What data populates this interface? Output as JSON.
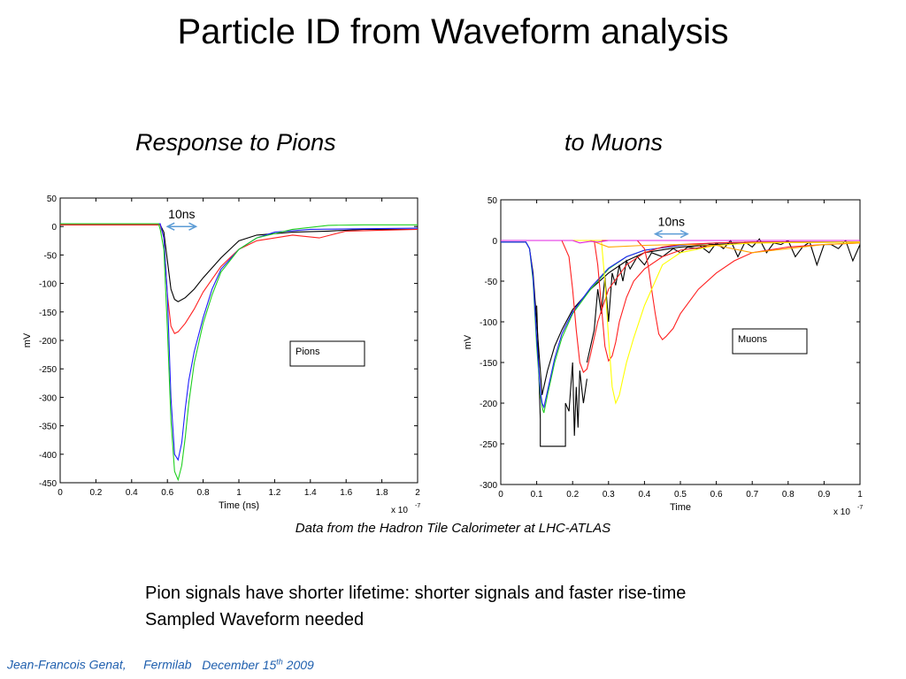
{
  "slide": {
    "title": "Particle ID from Waveform analysis",
    "subtitle_left": "Response to  Pions",
    "subtitle_right": "to  Muons",
    "caption": "Data from the  Hadron Tile Calorimeter  at  LHC-ATLAS",
    "bullets": [
      "Pion signals have shorter lifetime:  shorter signals and faster rise-time",
      "Sampled Waveform needed"
    ],
    "footer": {
      "author": "Jean-Francois Genat,",
      "lab": "Fermilab",
      "date_prefix": "December 15",
      "date_sup": "th",
      "date_year": " 2009"
    }
  },
  "colors": {
    "black": "#000000",
    "red": "#ff2020",
    "green": "#20d020",
    "blue": "#2020ff",
    "magenta": "#e020e0",
    "yellow": "#ffff00",
    "orange": "#ffa500",
    "arrow": "#5b9bd5",
    "footer": "#1f5fae"
  },
  "chart_data": [
    {
      "type": "line",
      "xlabel": "Time (ns)",
      "ylabel": "mV",
      "x_multiplier": "x 10",
      "x_multiplier_exp": "-7",
      "xlim": [
        0,
        2
      ],
      "ylim": [
        -450,
        50
      ],
      "xticks": [
        "0",
        "0.2",
        "0.4",
        "0.6",
        "0.8",
        "1",
        "1.2",
        "1.4",
        "1.6",
        "1.8",
        "2"
      ],
      "yticks": [
        "50",
        "0",
        "-50",
        "-100",
        "-150",
        "-200",
        "-250",
        "-300",
        "-350",
        "-400",
        "-450"
      ],
      "legend": "Pions",
      "annotation": "10ns",
      "annotation_span": [
        0.6,
        0.76
      ],
      "annotation_y": 0,
      "series": [
        {
          "color": "#000000",
          "x": [
            0,
            0.56,
            0.58,
            0.6,
            0.62,
            0.64,
            0.66,
            0.7,
            0.75,
            0.8,
            0.9,
            1.0,
            1.1,
            1.3,
            1.5,
            1.7,
            2.0
          ],
          "y": [
            3,
            3,
            -10,
            -60,
            -110,
            -128,
            -132,
            -125,
            -110,
            -90,
            -55,
            -25,
            -15,
            -10,
            -8,
            -5,
            -5
          ]
        },
        {
          "color": "#ff2020",
          "x": [
            0,
            0.56,
            0.58,
            0.6,
            0.62,
            0.64,
            0.66,
            0.7,
            0.75,
            0.8,
            0.9,
            1.0,
            1.1,
            1.3,
            1.45,
            1.6,
            2.0
          ],
          "y": [
            3,
            3,
            -20,
            -120,
            -175,
            -188,
            -185,
            -170,
            -145,
            -115,
            -70,
            -40,
            -25,
            -15,
            -20,
            -8,
            -5
          ]
        },
        {
          "color": "#2020ff",
          "x": [
            0,
            0.56,
            0.58,
            0.6,
            0.62,
            0.64,
            0.66,
            0.68,
            0.7,
            0.72,
            0.75,
            0.8,
            0.85,
            0.9,
            1.0,
            1.1,
            1.2,
            1.4,
            2.0
          ],
          "y": [
            5,
            5,
            -20,
            -120,
            -300,
            -400,
            -410,
            -380,
            -320,
            -270,
            -220,
            -160,
            -110,
            -75,
            -40,
            -20,
            -10,
            -5,
            -3
          ]
        },
        {
          "color": "#20d020",
          "x": [
            0,
            0.55,
            0.56,
            0.58,
            0.6,
            0.62,
            0.64,
            0.66,
            0.68,
            0.7,
            0.72,
            0.75,
            0.8,
            0.85,
            0.9,
            1.0,
            1.1,
            1.3,
            1.5,
            1.7,
            2.0
          ],
          "y": [
            5,
            5,
            -5,
            -40,
            -180,
            -340,
            -430,
            -445,
            -420,
            -370,
            -310,
            -240,
            -170,
            -120,
            -80,
            -40,
            -20,
            -5,
            2,
            3,
            3
          ]
        }
      ]
    },
    {
      "type": "line",
      "xlabel": "Time",
      "ylabel": "mV",
      "x_multiplier": "x 10",
      "x_multiplier_exp": "-7",
      "xlim": [
        0,
        1
      ],
      "ylim": [
        -300,
        50
      ],
      "xticks": [
        "0",
        "0.1",
        "0.2",
        "0.3",
        "0.4",
        "0.5",
        "0.6",
        "0.7",
        "0.8",
        "0.9",
        "1"
      ],
      "yticks": [
        "50",
        "0",
        "-50",
        "-100",
        "-150",
        "-200",
        "-250",
        "-300"
      ],
      "legend": "Muons",
      "annotation": "10ns",
      "annotation_span": [
        0.43,
        0.52
      ],
      "annotation_y": 8,
      "series": [
        {
          "color": "#000000",
          "x": [
            0,
            0.07,
            0.08,
            0.09,
            0.1,
            0.11,
            0.115,
            0.12,
            0.13,
            0.15,
            0.17,
            0.2,
            0.25,
            0.3,
            0.35,
            0.4,
            0.5,
            0.6,
            0.7,
            0.8,
            0.9,
            1.0
          ],
          "y": [
            -2,
            -2,
            -10,
            -40,
            -100,
            -160,
            -190,
            -180,
            -160,
            -130,
            -110,
            -85,
            -60,
            -40,
            -25,
            -15,
            -8,
            -5,
            -3,
            -2,
            -2,
            -2
          ]
        },
        {
          "color": "#000000",
          "x": [
            0.1,
            0.11,
            0.11,
            0.18,
            0.18,
            0.19,
            0.2,
            0.205,
            0.21,
            0.215,
            0.22,
            0.23,
            0.24
          ],
          "y": [
            -80,
            -220,
            -253,
            -253,
            -200,
            -210,
            -150,
            -240,
            -180,
            -230,
            -160,
            -200,
            -170
          ]
        },
        {
          "color": "#000000",
          "x": [
            0.24,
            0.26,
            0.27,
            0.28,
            0.29,
            0.3,
            0.31,
            0.32,
            0.33,
            0.34,
            0.35,
            0.36,
            0.38,
            0.4,
            0.42,
            0.45,
            0.48,
            0.5,
            0.52,
            0.55,
            0.58,
            0.6
          ],
          "y": [
            -150,
            -110,
            -60,
            -90,
            -45,
            -100,
            -40,
            -55,
            -30,
            -50,
            -25,
            -35,
            -20,
            -30,
            -15,
            -20,
            -10,
            -15,
            -8,
            -10,
            -5,
            -5
          ]
        },
        {
          "color": "#000000",
          "x": [
            0.55,
            0.58,
            0.6,
            0.62,
            0.64,
            0.66,
            0.68,
            0.7,
            0.72,
            0.74,
            0.76,
            0.78,
            0.8,
            0.82,
            0.84,
            0.86,
            0.88,
            0.9,
            0.92,
            0.94,
            0.96,
            0.98,
            1.0
          ],
          "y": [
            -5,
            -15,
            -3,
            -10,
            0,
            -20,
            -2,
            -8,
            2,
            -15,
            -3,
            -5,
            0,
            -20,
            -8,
            -2,
            -30,
            -5,
            -5,
            -10,
            0,
            -25,
            -5
          ]
        },
        {
          "color": "#20d020",
          "x": [
            0,
            0.07,
            0.08,
            0.09,
            0.1,
            0.11,
            0.115,
            0.12,
            0.13,
            0.15,
            0.17,
            0.2,
            0.25,
            0.3,
            0.35,
            0.4,
            0.5,
            0.6,
            0.7,
            1.0
          ],
          "y": [
            -2,
            -2,
            -10,
            -50,
            -130,
            -190,
            -205,
            -212,
            -190,
            -150,
            -120,
            -90,
            -60,
            -35,
            -20,
            -12,
            -6,
            -3,
            -2,
            -2
          ]
        },
        {
          "color": "#2020ff",
          "x": [
            0,
            0.07,
            0.08,
            0.09,
            0.1,
            0.11,
            0.115,
            0.12,
            0.13,
            0.15,
            0.17,
            0.2,
            0.25,
            0.3,
            0.35,
            0.4,
            0.5,
            0.6,
            0.7,
            1.0
          ],
          "y": [
            -2,
            -2,
            -10,
            -45,
            -120,
            -185,
            -200,
            -205,
            -185,
            -145,
            -115,
            -88,
            -58,
            -34,
            -20,
            -12,
            -6,
            -3,
            -2,
            -2
          ]
        },
        {
          "color": "#ff2020",
          "x": [
            0,
            0.17,
            0.19,
            0.2,
            0.21,
            0.22,
            0.23,
            0.24,
            0.25,
            0.27,
            0.3,
            0.35,
            0.4,
            0.45,
            0.5,
            0.6,
            0.7,
            1.0
          ],
          "y": [
            0,
            0,
            -20,
            -60,
            -110,
            -150,
            -162,
            -158,
            -140,
            -100,
            -60,
            -30,
            -15,
            -8,
            -5,
            -3,
            -2,
            -2
          ]
        },
        {
          "color": "#ff2020",
          "x": [
            0,
            0.26,
            0.27,
            0.28,
            0.29,
            0.3,
            0.31,
            0.32,
            0.33,
            0.35,
            0.37,
            0.4,
            0.45,
            0.5,
            0.6,
            0.7,
            1.0
          ],
          "y": [
            0,
            0,
            -30,
            -80,
            -130,
            -148,
            -142,
            -125,
            -100,
            -70,
            -50,
            -35,
            -20,
            -12,
            -6,
            -3,
            -2
          ]
        },
        {
          "color": "#ff2020",
          "x": [
            0,
            0.38,
            0.4,
            0.41,
            0.42,
            0.43,
            0.44,
            0.45,
            0.46,
            0.48,
            0.5,
            0.55,
            0.6,
            0.65,
            0.7,
            0.8,
            0.9,
            1.0
          ],
          "y": [
            0,
            0,
            -10,
            -30,
            -60,
            -90,
            -115,
            -122,
            -118,
            -108,
            -90,
            -60,
            -40,
            -25,
            -15,
            -8,
            -5,
            -3
          ]
        },
        {
          "color": "#ffff00",
          "x": [
            0,
            0.28,
            0.29,
            0.3,
            0.31,
            0.32,
            0.33,
            0.34,
            0.35,
            0.37,
            0.4,
            0.43,
            0.45,
            0.5,
            0.6,
            0.7,
            1.0
          ],
          "y": [
            0,
            0,
            -50,
            -120,
            -180,
            -200,
            -190,
            -170,
            -150,
            -120,
            -80,
            -50,
            -30,
            -15,
            -6,
            -3,
            -2
          ]
        },
        {
          "color": "#ffa500",
          "x": [
            0.25,
            0.3,
            0.4,
            0.5,
            0.6,
            0.7,
            0.8,
            0.9,
            1.0
          ],
          "y": [
            0,
            -8,
            -6,
            -5,
            -6,
            -15,
            -10,
            -5,
            -3
          ]
        },
        {
          "color": "#e020e0",
          "x": [
            0,
            0.2,
            0.22,
            0.25,
            0.27,
            0.3,
            0.5,
            1.0
          ],
          "y": [
            0,
            0,
            -3,
            -1,
            -2,
            0,
            0,
            0
          ]
        }
      ]
    }
  ]
}
